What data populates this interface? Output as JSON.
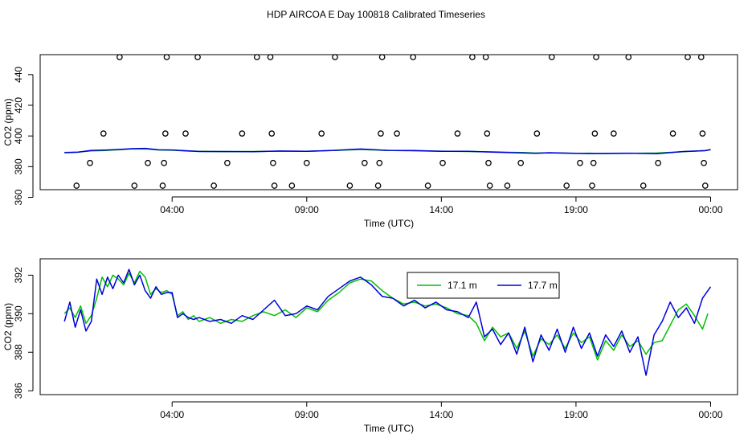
{
  "page_title": "HDP AIRCOA E  Day 100818  Calibrated Timeseries",
  "colors": {
    "green": "#00c000",
    "blue": "#0000dd",
    "axis": "#000000",
    "markers": "#000000"
  },
  "chart_data": [
    {
      "type": "scatter",
      "xlabel": "Time (UTC)",
      "ylabel": "CO2 (ppm)",
      "x_ticks": [
        "04:00",
        "09:00",
        "14:00",
        "19:00",
        "00:00"
      ],
      "x_tick_hours": [
        4,
        9,
        14,
        19,
        24
      ],
      "y_ticks": [
        360,
        380,
        400,
        420,
        440
      ],
      "xlim": [
        -0.9,
        25.0
      ],
      "ylim": [
        365,
        453
      ],
      "markers": [
        {
          "x": 0.45,
          "y": 367.6
        },
        {
          "x": 0.95,
          "y": 382.4
        },
        {
          "x": 1.45,
          "y": 401.6
        },
        {
          "x": 2.05,
          "y": 451.4
        },
        {
          "x": 2.6,
          "y": 367.6
        },
        {
          "x": 3.1,
          "y": 382.4
        },
        {
          "x": 3.65,
          "y": 367.6
        },
        {
          "x": 3.7,
          "y": 382.4
        },
        {
          "x": 3.75,
          "y": 401.6
        },
        {
          "x": 3.8,
          "y": 451.4
        },
        {
          "x": 4.5,
          "y": 401.6
        },
        {
          "x": 4.95,
          "y": 451.4
        },
        {
          "x": 5.55,
          "y": 367.6
        },
        {
          "x": 6.05,
          "y": 382.4
        },
        {
          "x": 6.6,
          "y": 401.6
        },
        {
          "x": 7.15,
          "y": 451.4
        },
        {
          "x": 7.65,
          "y": 451.4
        },
        {
          "x": 7.7,
          "y": 401.6
        },
        {
          "x": 7.75,
          "y": 382.4
        },
        {
          "x": 7.8,
          "y": 367.6
        },
        {
          "x": 8.45,
          "y": 367.6
        },
        {
          "x": 9.0,
          "y": 382.4
        },
        {
          "x": 9.55,
          "y": 401.6
        },
        {
          "x": 10.05,
          "y": 451.4
        },
        {
          "x": 10.6,
          "y": 367.6
        },
        {
          "x": 11.15,
          "y": 382.4
        },
        {
          "x": 11.65,
          "y": 367.6
        },
        {
          "x": 11.7,
          "y": 382.4
        },
        {
          "x": 11.75,
          "y": 401.6
        },
        {
          "x": 11.8,
          "y": 451.4
        },
        {
          "x": 12.35,
          "y": 401.6
        },
        {
          "x": 12.95,
          "y": 451.4
        },
        {
          "x": 13.5,
          "y": 367.6
        },
        {
          "x": 14.05,
          "y": 382.4
        },
        {
          "x": 14.6,
          "y": 401.6
        },
        {
          "x": 15.15,
          "y": 451.4
        },
        {
          "x": 15.65,
          "y": 451.4
        },
        {
          "x": 15.7,
          "y": 401.6
        },
        {
          "x": 15.75,
          "y": 382.4
        },
        {
          "x": 15.8,
          "y": 367.6
        },
        {
          "x": 16.45,
          "y": 367.6
        },
        {
          "x": 16.95,
          "y": 382.4
        },
        {
          "x": 17.55,
          "y": 401.6
        },
        {
          "x": 18.1,
          "y": 451.4
        },
        {
          "x": 18.65,
          "y": 367.6
        },
        {
          "x": 19.15,
          "y": 382.4
        },
        {
          "x": 19.6,
          "y": 367.6
        },
        {
          "x": 19.65,
          "y": 382.4
        },
        {
          "x": 19.7,
          "y": 401.6
        },
        {
          "x": 19.75,
          "y": 451.4
        },
        {
          "x": 20.4,
          "y": 401.6
        },
        {
          "x": 20.95,
          "y": 451.4
        },
        {
          "x": 21.5,
          "y": 367.6
        },
        {
          "x": 22.05,
          "y": 382.4
        },
        {
          "x": 22.6,
          "y": 401.6
        },
        {
          "x": 23.15,
          "y": 451.4
        },
        {
          "x": 23.65,
          "y": 451.4
        },
        {
          "x": 23.7,
          "y": 401.6
        },
        {
          "x": 23.75,
          "y": 382.4
        },
        {
          "x": 23.8,
          "y": 367.6
        }
      ],
      "series": [
        {
          "name": "17.1 m",
          "color": "#00c000",
          "x": [
            0.0,
            0.5,
            1.0,
            1.5,
            2.0,
            2.5,
            3.0,
            3.5,
            4.0,
            4.5,
            5.0,
            6.0,
            7.0,
            8.0,
            9.0,
            10.0,
            11.0,
            12.0,
            13.0,
            14.0,
            15.0,
            16.0,
            17.0,
            17.5,
            18.0,
            19.0,
            19.5,
            20.0,
            21.0,
            22.0,
            23.0,
            23.8,
            24.0
          ],
          "y": [
            389.3,
            389.5,
            390.3,
            390.5,
            391.0,
            391.5,
            391.6,
            390.9,
            390.7,
            390.2,
            390.0,
            389.8,
            389.9,
            390.1,
            390.0,
            390.5,
            391.2,
            390.6,
            390.3,
            390.1,
            389.9,
            389.6,
            389.2,
            388.9,
            389.0,
            388.6,
            388.8,
            388.5,
            388.7,
            388.9,
            389.8,
            390.5,
            391.0
          ]
        },
        {
          "name": "17.7 m",
          "color": "#0000dd",
          "x": [
            0.0,
            0.5,
            1.0,
            1.5,
            2.0,
            2.5,
            3.0,
            3.5,
            4.0,
            4.5,
            5.0,
            6.0,
            7.0,
            8.0,
            9.0,
            10.0,
            11.0,
            12.0,
            13.0,
            14.0,
            15.0,
            16.0,
            17.0,
            17.5,
            18.0,
            19.0,
            19.5,
            20.0,
            21.0,
            22.0,
            23.0,
            23.8,
            24.0
          ],
          "y": [
            389.1,
            389.4,
            390.6,
            390.8,
            391.2,
            391.7,
            391.9,
            391.0,
            390.9,
            390.4,
            389.9,
            389.9,
            389.8,
            390.2,
            390.0,
            390.6,
            391.5,
            390.6,
            390.5,
            390.0,
            390.0,
            389.4,
            389.0,
            388.7,
            389.1,
            388.7,
            388.5,
            388.6,
            388.8,
            388.4,
            389.9,
            390.4,
            391.2
          ]
        }
      ]
    },
    {
      "type": "line",
      "xlabel": "Time (UTC)",
      "ylabel": "CO2 (ppm)",
      "x_ticks": [
        "04:00",
        "09:00",
        "14:00",
        "19:00",
        "00:00"
      ],
      "x_tick_hours": [
        4,
        9,
        14,
        19,
        24
      ],
      "y_ticks": [
        386,
        388,
        390,
        392
      ],
      "xlim": [
        -0.9,
        25.0
      ],
      "ylim": [
        385.8,
        392.85
      ],
      "legend": "top-center",
      "series": [
        {
          "name": "17.1 m",
          "color": "#00c000",
          "x": [
            0.0,
            0.2,
            0.4,
            0.6,
            0.8,
            1.0,
            1.2,
            1.4,
            1.6,
            1.8,
            2.0,
            2.2,
            2.4,
            2.6,
            2.8,
            3.0,
            3.2,
            3.4,
            3.6,
            3.8,
            4.0,
            4.2,
            4.4,
            4.6,
            4.8,
            5.0,
            5.4,
            5.8,
            6.2,
            6.6,
            7.0,
            7.4,
            7.8,
            8.2,
            8.6,
            9.0,
            9.4,
            9.8,
            10.2,
            10.6,
            11.0,
            11.4,
            11.8,
            12.2,
            12.6,
            13.0,
            13.4,
            13.8,
            14.2,
            14.6,
            15.0,
            15.3,
            15.6,
            15.9,
            16.2,
            16.5,
            16.8,
            17.1,
            17.4,
            17.7,
            18.0,
            18.3,
            18.6,
            18.9,
            19.2,
            19.5,
            19.8,
            20.1,
            20.4,
            20.7,
            21.0,
            21.3,
            21.6,
            21.9,
            22.2,
            22.5,
            22.8,
            23.1,
            23.4,
            23.7,
            23.9
          ],
          "y": [
            390.0,
            390.3,
            389.8,
            390.4,
            389.5,
            389.9,
            390.8,
            391.9,
            391.4,
            392.0,
            391.8,
            391.5,
            392.1,
            391.6,
            392.2,
            391.9,
            391.0,
            391.3,
            391.1,
            391.2,
            391.0,
            389.9,
            390.1,
            389.7,
            389.9,
            389.6,
            389.8,
            389.5,
            389.7,
            389.6,
            389.9,
            390.1,
            389.9,
            390.2,
            389.8,
            390.3,
            390.1,
            390.7,
            391.1,
            391.6,
            391.8,
            391.7,
            391.2,
            390.8,
            390.5,
            390.6,
            390.4,
            390.5,
            390.3,
            390.0,
            389.9,
            389.5,
            388.6,
            389.3,
            388.8,
            389.0,
            388.2,
            389.1,
            387.8,
            388.7,
            388.4,
            388.9,
            388.2,
            389.0,
            388.5,
            388.8,
            387.6,
            388.6,
            388.1,
            388.9,
            388.3,
            388.6,
            387.9,
            388.5,
            388.6,
            389.4,
            390.2,
            390.5,
            389.9,
            389.2,
            390.0
          ]
        },
        {
          "name": "17.7 m",
          "color": "#0000dd",
          "x": [
            0.0,
            0.2,
            0.4,
            0.6,
            0.8,
            1.0,
            1.2,
            1.4,
            1.6,
            1.8,
            2.0,
            2.2,
            2.4,
            2.6,
            2.8,
            3.0,
            3.2,
            3.4,
            3.6,
            3.8,
            4.0,
            4.2,
            4.4,
            4.6,
            4.8,
            5.0,
            5.4,
            5.8,
            6.2,
            6.6,
            7.0,
            7.4,
            7.8,
            8.2,
            8.6,
            9.0,
            9.4,
            9.8,
            10.2,
            10.6,
            11.0,
            11.4,
            11.8,
            12.2,
            12.6,
            13.0,
            13.4,
            13.8,
            14.2,
            14.6,
            15.0,
            15.3,
            15.6,
            15.9,
            16.2,
            16.5,
            16.8,
            17.1,
            17.4,
            17.7,
            18.0,
            18.3,
            18.6,
            18.9,
            19.2,
            19.5,
            19.8,
            20.1,
            20.4,
            20.7,
            21.0,
            21.3,
            21.6,
            21.9,
            22.2,
            22.5,
            22.8,
            23.1,
            23.4,
            23.7,
            24.0
          ],
          "y": [
            389.6,
            390.6,
            389.3,
            390.2,
            389.1,
            389.6,
            391.8,
            391.0,
            391.9,
            391.3,
            392.0,
            391.6,
            392.3,
            391.5,
            392.0,
            391.2,
            390.8,
            391.4,
            391.0,
            391.1,
            391.1,
            389.8,
            390.0,
            389.8,
            389.7,
            389.8,
            389.6,
            389.7,
            389.5,
            389.9,
            389.7,
            390.2,
            390.7,
            389.9,
            390.0,
            390.4,
            390.2,
            390.9,
            391.3,
            391.7,
            391.9,
            391.5,
            390.9,
            390.8,
            390.4,
            390.7,
            390.3,
            390.6,
            390.2,
            390.1,
            389.8,
            390.6,
            388.8,
            389.2,
            388.4,
            389.0,
            387.9,
            389.3,
            387.5,
            388.9,
            388.1,
            389.2,
            388.0,
            389.3,
            388.2,
            389.0,
            387.8,
            388.9,
            388.3,
            389.1,
            388.0,
            388.8,
            386.8,
            388.9,
            389.6,
            390.6,
            389.8,
            390.3,
            389.5,
            390.8,
            391.4
          ]
        }
      ]
    }
  ]
}
